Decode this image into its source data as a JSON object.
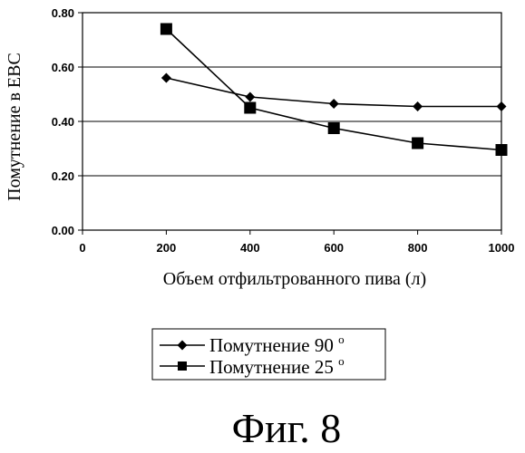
{
  "chart_data": {
    "type": "line",
    "title": "",
    "xlabel": "Объем отфильтрованного пива (л)",
    "ylabel": "Помутнение в EBC",
    "xlim": [
      0,
      1000
    ],
    "ylim": [
      0.0,
      0.8
    ],
    "x_ticks": [
      "0",
      "200",
      "400",
      "600",
      "800",
      "1000"
    ],
    "y_ticks": [
      "0.00",
      "0.20",
      "0.40",
      "0.60",
      "0.80"
    ],
    "grid": "horizontal",
    "legend_position": "below",
    "series": [
      {
        "name": "Помутнение 90°",
        "name_main": "Помутнение",
        "name_temp": "90",
        "name_degree": "o",
        "marker": "diamond",
        "x": [
          200,
          400,
          600,
          800,
          1000
        ],
        "y": [
          0.56,
          0.49,
          0.465,
          0.455,
          0.455
        ]
      },
      {
        "name": "Помутнение 25°",
        "name_main": "Помутнение",
        "name_temp": "25",
        "name_degree": "o",
        "marker": "square",
        "x": [
          200,
          400,
          600,
          800,
          1000
        ],
        "y": [
          0.74,
          0.45,
          0.375,
          0.32,
          0.295
        ]
      }
    ]
  },
  "caption": "Фиг. 8"
}
